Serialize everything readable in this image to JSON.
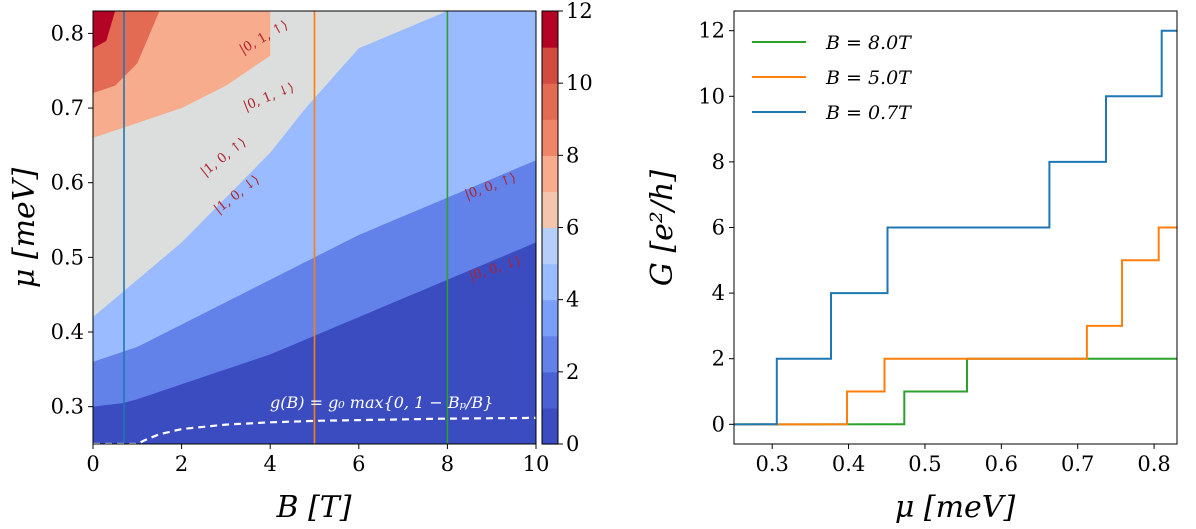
{
  "colors": {
    "c0": "#3b4cc0",
    "c1": "#4961d2",
    "c2": "#6282ea",
    "c3": "#7b9ff9",
    "c4": "#9abbff",
    "c5": "#b6cefa",
    "c6": "#dcdddd",
    "c7": "#f4c5ad",
    "c8": "#f7ac8e",
    "c9": "#ee8468",
    "c10": "#e36b54",
    "c11": "#d24b40",
    "c12": "#b40426",
    "green": "#2ca02c",
    "orange": "#ff7f0e",
    "blue": "#1f77b4"
  },
  "chart_data": [
    {
      "type": "heatmap",
      "xlabel": "B [T]",
      "ylabel": "μ [meV]",
      "xlim": [
        0,
        10
      ],
      "ylim": [
        0.25,
        0.83
      ],
      "xticks": [
        "0",
        "2",
        "4",
        "6",
        "8",
        "10"
      ],
      "yticks": [
        "0.3",
        "0.4",
        "0.5",
        "0.6",
        "0.7",
        "0.8"
      ],
      "colorbar": {
        "min": 0,
        "max": 12,
        "ticks": [
          "0",
          "2",
          "4",
          "6",
          "8",
          "10",
          "12"
        ]
      },
      "levels": [
        {
          "value": 0,
          "x": [
            0,
            10
          ],
          "y": [
            0.25,
            0.25
          ]
        },
        {
          "value": 2,
          "x": [
            0,
            0.7,
            1,
            2,
            4,
            6,
            8,
            10
          ],
          "y": [
            0.3,
            0.305,
            0.31,
            0.33,
            0.37,
            0.42,
            0.47,
            0.52
          ]
        },
        {
          "value": 4,
          "x": [
            0,
            1,
            2,
            4,
            6,
            8,
            10
          ],
          "y": [
            0.36,
            0.38,
            0.41,
            0.47,
            0.53,
            0.58,
            0.63
          ]
        },
        {
          "value": 6,
          "x": [
            0,
            1,
            2,
            3,
            4,
            4.8,
            6,
            8,
            10
          ],
          "y": [
            0.42,
            0.47,
            0.52,
            0.58,
            0.64,
            0.7,
            0.78,
            0.83,
            0.83
          ]
        },
        {
          "value": 8,
          "x": [
            0,
            1,
            2,
            3,
            4
          ],
          "y": [
            0.66,
            0.68,
            0.7,
            0.73,
            0.77
          ]
        },
        {
          "value": 10,
          "x": [
            0,
            0.5,
            1,
            1.5
          ],
          "y": [
            0.72,
            0.73,
            0.76,
            0.83
          ]
        },
        {
          "value": 12,
          "x": [
            0,
            0.3,
            0.5
          ],
          "y": [
            0.78,
            0.79,
            0.83
          ]
        }
      ],
      "cut_lines": [
        {
          "name": "B = 0.7T",
          "x": 0.7,
          "color": "blue"
        },
        {
          "name": "B = 5.0T",
          "x": 5.0,
          "color": "orange"
        },
        {
          "name": "B = 8.0T",
          "x": 8.0,
          "color": "green"
        }
      ],
      "dashed_curve": {
        "label": "g(B) = g₀ max{0, 1 − Bₚ/B}",
        "x": [
          0,
          1,
          1.2,
          1.5,
          2,
          3,
          4,
          5,
          6,
          8,
          10
        ],
        "y": [
          0.25,
          0.25,
          0.256,
          0.263,
          0.27,
          0.276,
          0.279,
          0.281,
          0.282,
          0.284,
          0.285
        ]
      },
      "region_labels": [
        {
          "text": "|0, 1, ↑⟩",
          "x": 3.9,
          "y": 0.79,
          "rotation": -30
        },
        {
          "text": "|0, 1, ↓⟩",
          "x": 4.0,
          "y": 0.71,
          "rotation": -22
        },
        {
          "text": "|1, 0, ↑⟩",
          "x": 3.0,
          "y": 0.63,
          "rotation": -38
        },
        {
          "text": "|1, 0, ↓⟩",
          "x": 3.3,
          "y": 0.58,
          "rotation": -38
        },
        {
          "text": "|0, 0, ↑⟩",
          "x": 9.0,
          "y": 0.59,
          "rotation": -20
        },
        {
          "text": "|0, 0, ↓⟩",
          "x": 9.1,
          "y": 0.48,
          "rotation": -18
        }
      ]
    },
    {
      "type": "line",
      "xlabel": "μ [meV]",
      "ylabel": "G [e²/h]",
      "xlim": [
        0.25,
        0.83
      ],
      "ylim": [
        -0.6,
        12.6
      ],
      "xticks": [
        "0.3",
        "0.4",
        "0.5",
        "0.6",
        "0.7",
        "0.8"
      ],
      "yticks": [
        "0",
        "2",
        "4",
        "6",
        "8",
        "10",
        "12"
      ],
      "legend_position": "top-left",
      "series": [
        {
          "name": "B = 8.0T",
          "color": "green",
          "steps": [
            0.473,
            0.555
          ],
          "values": [
            0,
            1,
            2
          ]
        },
        {
          "name": "B = 5.0T",
          "color": "orange",
          "steps": [
            0.398,
            0.447,
            0.712,
            0.758,
            0.806
          ],
          "values": [
            0,
            1,
            2,
            3,
            5,
            6
          ]
        },
        {
          "name": "B = 0.7T",
          "color": "blue",
          "steps": [
            0.306,
            0.377,
            0.451,
            0.663,
            0.737,
            0.81
          ],
          "values": [
            0,
            2,
            4,
            6,
            8,
            10,
            12
          ]
        }
      ]
    }
  ]
}
